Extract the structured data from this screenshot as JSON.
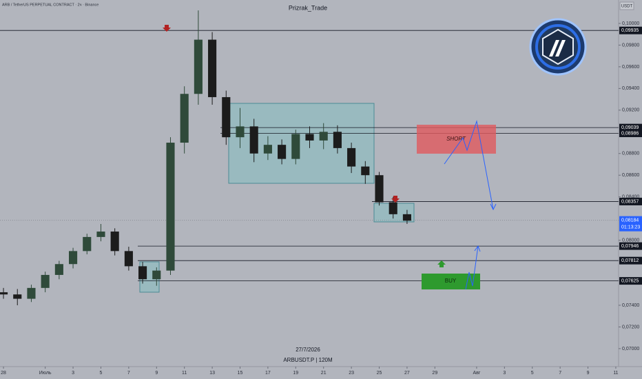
{
  "chart_data": {
    "type": "candlestick",
    "header": "ARB / TetherUS PERPETUAL CONTRACT · 2ч · Binance",
    "title": "Prizrak_Trade",
    "currency": "USDT",
    "footer_date": "27/7/2026",
    "footer_symbol": "ARBUSDT.P | 120M",
    "countdown": "01:13:23",
    "up_color": "#2f4a3a",
    "down_color": "#1c1c1c",
    "x": [
      0,
      1,
      2,
      3,
      4,
      5,
      6,
      7,
      8,
      9,
      10,
      11,
      12,
      13,
      14,
      15,
      16,
      17,
      18,
      19,
      20,
      21,
      22,
      23,
      24,
      25,
      26,
      27,
      28,
      29
    ],
    "open": [
      0.0752,
      0.075,
      0.0746,
      0.0756,
      0.0768,
      0.0778,
      0.079,
      0.0803,
      0.0808,
      0.079,
      0.0776,
      0.0764,
      0.0772,
      0.089,
      0.0935,
      0.0985,
      0.0932,
      0.0895,
      0.0905,
      0.088,
      0.0888,
      0.0875,
      0.0898,
      0.0892,
      0.09,
      0.0885,
      0.0868,
      0.086,
      0.0835,
      0.0824
    ],
    "high": [
      0.0756,
      0.0755,
      0.0759,
      0.0771,
      0.0781,
      0.0793,
      0.0806,
      0.0815,
      0.0811,
      0.0794,
      0.078,
      0.0775,
      0.0895,
      0.0942,
      0.1012,
      0.0992,
      0.0938,
      0.0922,
      0.0912,
      0.0896,
      0.0893,
      0.0902,
      0.0905,
      0.0908,
      0.0906,
      0.089,
      0.0873,
      0.0863,
      0.084,
      0.0828
    ],
    "low": [
      0.0746,
      0.074,
      0.0743,
      0.0752,
      0.0764,
      0.0774,
      0.0787,
      0.0799,
      0.0786,
      0.0772,
      0.076,
      0.0758,
      0.0768,
      0.088,
      0.0925,
      0.0925,
      0.0888,
      0.0885,
      0.0872,
      0.0874,
      0.087,
      0.087,
      0.0885,
      0.0884,
      0.088,
      0.0862,
      0.0852,
      0.0832,
      0.082,
      0.0815
    ],
    "close": [
      0.075,
      0.0746,
      0.0756,
      0.0768,
      0.0778,
      0.079,
      0.0803,
      0.0808,
      0.079,
      0.0776,
      0.0764,
      0.0772,
      0.089,
      0.0935,
      0.0985,
      0.0932,
      0.0895,
      0.0905,
      0.088,
      0.0888,
      0.0875,
      0.0898,
      0.0892,
      0.09,
      0.0885,
      0.0868,
      0.086,
      0.0835,
      0.0824,
      0.0818
    ],
    "xlim": [
      -0.25,
      44.2
    ],
    "ylim": [
      0.06847,
      0.10216
    ],
    "xticks": [
      {
        "value": 0,
        "label": "28"
      },
      {
        "value": 3,
        "label": "Июль"
      },
      {
        "value": 5,
        "label": "3"
      },
      {
        "value": 7,
        "label": "5"
      },
      {
        "value": 9,
        "label": "7"
      },
      {
        "value": 11,
        "label": "9"
      },
      {
        "value": 13,
        "label": "11"
      },
      {
        "value": 15,
        "label": "13"
      },
      {
        "value": 17,
        "label": "15"
      },
      {
        "value": 19,
        "label": "17"
      },
      {
        "value": 21,
        "label": "19"
      },
      {
        "value": 23,
        "label": "21"
      },
      {
        "value": 25,
        "label": "23"
      },
      {
        "value": 27,
        "label": "25"
      },
      {
        "value": 29,
        "label": "27"
      },
      {
        "value": 31,
        "label": "29"
      },
      {
        "value": 34,
        "label": "Авг"
      },
      {
        "value": 36,
        "label": "3"
      },
      {
        "value": 38,
        "label": "5"
      },
      {
        "value": 40,
        "label": "7"
      },
      {
        "value": 42,
        "label": "9"
      },
      {
        "value": 44,
        "label": "11"
      }
    ],
    "yticks": [
      {
        "value": 0.1,
        "label": "0,10000"
      },
      {
        "value": 0.098,
        "label": "0,09800"
      },
      {
        "value": 0.096,
        "label": "0,09600"
      },
      {
        "value": 0.094,
        "label": "0,09400"
      },
      {
        "value": 0.092,
        "label": "0,09200"
      },
      {
        "value": 0.088,
        "label": "0,08800"
      },
      {
        "value": 0.086,
        "label": "0,08600"
      },
      {
        "value": 0.084,
        "label": "0,08400"
      },
      {
        "value": 0.08,
        "label": "0,08000"
      },
      {
        "value": 0.074,
        "label": "0,07400"
      },
      {
        "value": 0.072,
        "label": "0,07200"
      },
      {
        "value": 0.07,
        "label": "0,07000"
      }
    ],
    "levels": [
      {
        "value": 0.09935,
        "label": "0,09935"
      },
      {
        "value": 0.09039,
        "label": "0,09039"
      },
      {
        "value": 0.08986,
        "label": "0,08986"
      },
      {
        "value": 0.08357,
        "label": "0,08357"
      },
      {
        "value": 0.07946,
        "label": "0,07946"
      },
      {
        "value": 0.07812,
        "label": "0,07812"
      },
      {
        "value": 0.07625,
        "label": "0,07625"
      }
    ],
    "current_price": {
      "value": 0.08184,
      "label": "0,08184"
    },
    "annotations": {
      "short": "SHORT",
      "buy": "BUY"
    }
  }
}
